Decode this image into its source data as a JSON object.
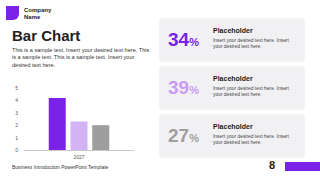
{
  "chart_data": {
    "type": "bar",
    "categories": [
      "2027"
    ],
    "series": [
      {
        "color": "#7b22e8",
        "values": [
          4.2
        ]
      },
      {
        "color": "#d3b2f5",
        "values": [
          2.3
        ]
      },
      {
        "color": "#9e9e9e",
        "values": [
          2.0
        ]
      }
    ],
    "ylim": [
      0,
      5
    ],
    "yticks": [
      0,
      1,
      2,
      3,
      4,
      5
    ],
    "grid": false
  },
  "slide": {
    "company": "Company Name",
    "title": "Bar Chart",
    "body": "This is a sample text. Insert your desired text here. This is a sample text. This is a sample text. Insert your desired text here.",
    "cards": [
      {
        "value": "34%",
        "color": "#7b22e8",
        "heading": "Placeholder",
        "text": "Insert your desired text here. Insert your desired text here."
      },
      {
        "value": "39%",
        "color": "#c89cf3",
        "heading": "Placeholder",
        "text": "Insert your desired text here. Insert your desired text here."
      },
      {
        "value": "27%",
        "color": "#9e9e9e",
        "heading": "Placeholder",
        "text": "Insert your desired text here. Insert your desired text here."
      }
    ],
    "footer": "Business Introduction PowerPoint Template",
    "page": "8"
  }
}
